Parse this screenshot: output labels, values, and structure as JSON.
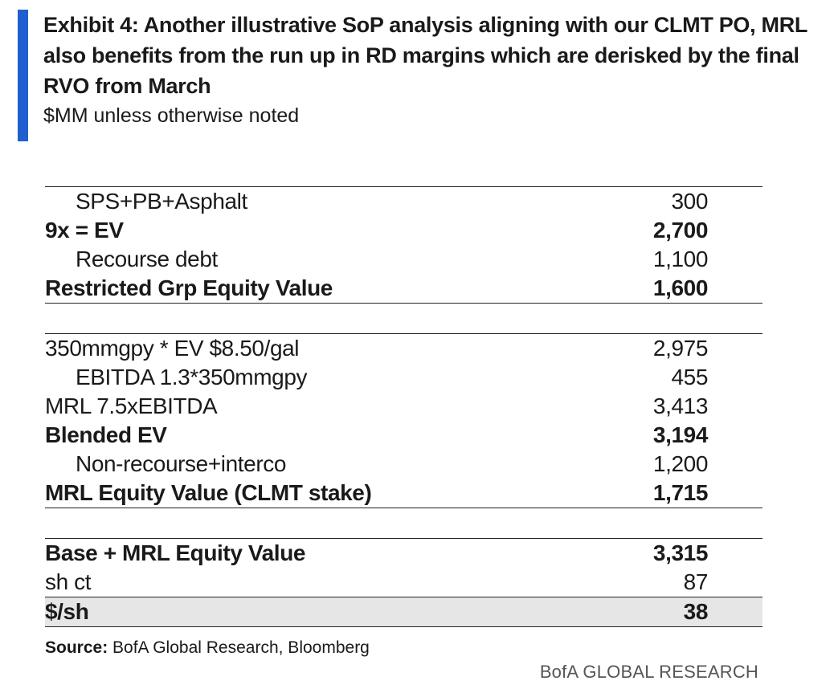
{
  "header": {
    "title": "Exhibit 4: Another illustrative SoP analysis aligning with our CLMT PO, MRL also benefits from the run up in RD margins which are derisked by the final RVO from March",
    "subtitle": "$MM unless otherwise noted"
  },
  "table": {
    "group1": [
      {
        "label": "SPS+PB+Asphalt",
        "value": "300"
      },
      {
        "label": "9x = EV",
        "value": "2,700"
      },
      {
        "label": "Recourse debt",
        "value": "1,100"
      },
      {
        "label": "Restricted Grp Equity Value",
        "value": "1,600"
      }
    ],
    "group2": [
      {
        "label": "350mmgpy * EV $8.50/gal",
        "value": "2,975"
      },
      {
        "label": "EBITDA 1.3*350mmgpy",
        "value": "455"
      },
      {
        "label": "MRL 7.5xEBITDA",
        "value": "3,413"
      },
      {
        "label": "Blended EV",
        "value": "3,194"
      },
      {
        "label": "Non-recourse+interco",
        "value": "1,200"
      },
      {
        "label": "MRL Equity Value (CLMT stake)",
        "value": "1,715"
      }
    ],
    "group3": [
      {
        "label": "Base + MRL Equity Value",
        "value": "3,315"
      },
      {
        "label": "sh ct",
        "value": "87"
      },
      {
        "label": "$/sh",
        "value": "38"
      }
    ]
  },
  "footer": {
    "source_label": "Source:",
    "source_text": " BofA Global Research, Bloomberg",
    "brand": "BofA GLOBAL RESEARCH"
  },
  "colors": {
    "accent": "#1f5fcf",
    "shaded_row": "#e6e6e6"
  }
}
